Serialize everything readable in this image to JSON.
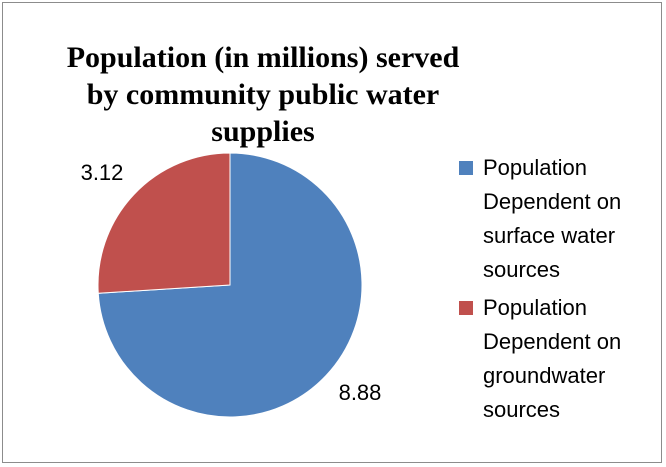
{
  "chart_data": {
    "type": "pie",
    "title": "Population (in millions) served by community public water supplies",
    "slices": [
      {
        "label": "Population Dependent on surface water sources",
        "value": 8.88,
        "value_label": "8.88",
        "color": "#4f81bd"
      },
      {
        "label": "Population Dependent on groundwater sources",
        "value": 3.12,
        "value_label": "3.12",
        "color": "#c0504d"
      }
    ],
    "legend_placement": "right"
  }
}
